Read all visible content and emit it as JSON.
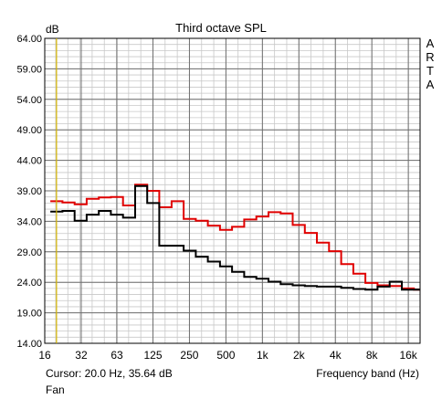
{
  "chart_data": {
    "type": "line",
    "title": "Third octave SPL",
    "ylabel": "dB",
    "xlabel": "Frequency band (Hz)",
    "x_scale": "log",
    "ylim": [
      14,
      64
    ],
    "xlim": [
      16,
      20000
    ],
    "y_ticks": [
      "64.00",
      "59.00",
      "54.00",
      "49.00",
      "44.00",
      "39.00",
      "34.00",
      "29.00",
      "24.00",
      "19.00",
      "14.00"
    ],
    "x_ticks": [
      {
        "value": 16,
        "label": "16"
      },
      {
        "value": 32,
        "label": "32"
      },
      {
        "value": 63,
        "label": "63"
      },
      {
        "value": 125,
        "label": "125"
      },
      {
        "value": 250,
        "label": "250"
      },
      {
        "value": 500,
        "label": "500"
      },
      {
        "value": 1000,
        "label": "1k"
      },
      {
        "value": 2000,
        "label": "2k"
      },
      {
        "value": 4000,
        "label": "4k"
      },
      {
        "value": 8000,
        "label": "8k"
      },
      {
        "value": 16000,
        "label": "16k"
      }
    ],
    "grid": true,
    "cursor_x": 20,
    "band_edges": [
      17.8,
      22.4,
      28.2,
      35.5,
      44.7,
      56.2,
      70.8,
      89.1,
      112,
      141,
      178,
      224,
      282,
      355,
      447,
      562,
      708,
      891,
      1122,
      1413,
      1778,
      2239,
      2818,
      3548,
      4467,
      5623,
      7079,
      8913,
      11220,
      14125,
      17783,
      20000
    ],
    "series": [
      {
        "color": "#e00000",
        "values": [
          37.3,
          37.1,
          36.8,
          37.7,
          37.9,
          38.0,
          36.6,
          40.0,
          39.0,
          36.3,
          37.3,
          34.4,
          34.1,
          33.3,
          32.6,
          33.1,
          34.3,
          34.8,
          35.5,
          35.3,
          33.4,
          32.1,
          30.5,
          29.1,
          27.0,
          25.4,
          23.9,
          23.5,
          23.4,
          23.0,
          22.8
        ]
      },
      {
        "color": "#000000",
        "values": [
          35.6,
          35.7,
          34.1,
          35.1,
          35.7,
          35.1,
          34.6,
          39.8,
          37.0,
          30.0,
          30.0,
          29.2,
          28.2,
          27.4,
          26.6,
          25.7,
          24.9,
          24.6,
          24.1,
          23.7,
          23.5,
          23.4,
          23.3,
          23.3,
          23.1,
          22.9,
          22.8,
          23.3,
          24.1,
          22.8,
          22.8
        ]
      }
    ]
  },
  "ui": {
    "brand": [
      "A",
      "R",
      "T",
      "A"
    ],
    "cursor_readout": "Cursor:   20.0 Hz, 35.64 dB",
    "bottom_note": "Fan"
  }
}
